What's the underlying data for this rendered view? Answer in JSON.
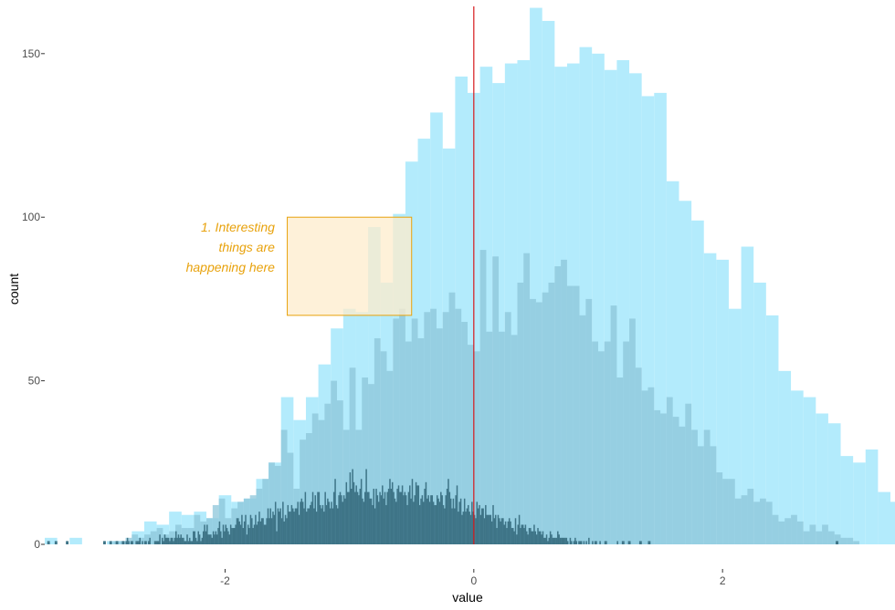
{
  "chart_data": {
    "type": "bar",
    "title": "",
    "xlabel": "value",
    "ylabel": "count",
    "xlim": [
      -3.45,
      3.35
    ],
    "ylim": [
      0,
      165
    ],
    "x_ticks": [
      -2,
      0,
      2
    ],
    "x_tick_labels": [
      "-2",
      "0",
      "2"
    ],
    "y_ticks": [
      0,
      50,
      100,
      150
    ],
    "y_tick_labels": [
      "0",
      "50",
      "100",
      "150"
    ],
    "grid": false,
    "colors": {
      "wide_bins": "#b3ebfc",
      "medium_bins": "#8cc6da",
      "narrow_bins": "#3e7487",
      "vline": "#d7191c",
      "annotation": "#e8a20c",
      "annotation_fill": "#fdeccc"
    },
    "series": [
      {
        "bin_width": 0.1,
        "x_start": -3.45,
        "values": [
          2,
          0,
          2,
          0,
          0,
          1,
          1,
          4,
          7,
          6,
          10,
          9,
          10,
          8,
          15,
          13,
          14,
          20,
          25,
          45,
          38,
          45,
          55,
          66,
          72,
          71,
          97,
          80,
          101,
          117,
          124,
          132,
          121,
          143,
          138,
          146,
          141,
          147,
          148,
          164,
          160,
          146,
          147,
          152,
          150,
          145,
          148,
          144,
          137,
          138,
          111,
          105,
          99,
          89,
          87,
          72,
          91,
          80,
          70,
          53,
          47,
          45,
          40,
          37,
          27,
          25,
          29,
          16,
          13,
          13,
          6,
          6,
          4,
          1,
          1,
          1,
          0,
          0,
          1,
          0,
          0
        ]
      },
      {
        "bin_width": 0.05,
        "x_start": -2.9,
        "values": [
          1,
          1,
          2,
          3,
          2,
          3,
          4,
          5,
          3,
          4,
          6,
          5,
          5,
          9,
          7,
          8,
          12,
          14,
          8,
          11,
          13,
          14,
          15,
          17,
          20,
          25,
          24,
          35,
          28,
          17,
          32,
          34,
          40,
          38,
          43,
          50,
          44,
          35,
          54,
          35,
          51,
          49,
          63,
          59,
          53,
          69,
          72,
          62,
          69,
          63,
          71,
          72,
          66,
          71,
          77,
          72,
          68,
          61,
          59,
          90,
          65,
          88,
          65,
          71,
          64,
          80,
          89,
          75,
          74,
          77,
          80,
          85,
          87,
          79,
          79,
          70,
          75,
          62,
          59,
          62,
          73,
          51,
          62,
          69,
          54,
          47,
          48,
          41,
          40,
          45,
          39,
          36,
          43,
          35,
          30,
          35,
          30,
          22,
          20,
          20,
          14,
          15,
          17,
          13,
          14,
          13,
          9,
          7,
          8,
          9,
          7,
          4,
          6,
          4,
          6,
          4,
          3,
          2,
          2,
          1
        ]
      },
      {
        "bin_width": 0.01,
        "x_start": -3.45,
        "values": [
          0,
          0,
          1,
          1,
          0,
          0,
          0,
          0,
          1,
          1,
          0,
          0,
          0,
          0,
          0,
          0,
          0,
          1,
          1,
          0,
          0,
          0,
          0,
          0,
          0,
          0,
          0,
          0,
          0,
          0,
          0,
          0,
          0,
          0,
          0,
          0,
          0,
          0,
          0,
          0,
          0,
          0,
          0,
          0,
          0,
          0,
          0,
          1,
          1,
          0,
          0,
          0,
          1,
          1,
          0,
          0,
          0,
          1,
          1,
          0,
          0,
          0,
          1,
          1,
          0,
          1,
          2,
          1,
          0,
          1,
          1,
          0,
          0,
          1,
          1,
          1,
          2,
          0,
          1,
          0,
          1,
          1,
          0,
          1,
          2,
          0,
          0,
          0,
          1,
          1,
          1,
          1,
          3,
          0,
          2,
          1,
          3,
          2,
          2,
          2,
          1,
          2,
          2,
          1,
          2,
          4,
          2,
          3,
          2,
          3,
          2,
          2,
          1,
          1,
          3,
          1,
          2,
          1,
          1,
          4,
          4,
          2,
          1,
          4,
          3,
          1,
          2,
          4,
          6,
          4,
          6,
          3,
          3,
          3,
          2,
          4,
          3,
          4,
          3,
          5,
          7,
          4,
          2,
          6,
          4,
          6,
          5,
          4,
          3,
          6,
          5,
          5,
          5,
          6,
          8,
          8,
          7,
          6,
          9,
          5,
          7,
          9,
          3,
          6,
          5,
          9,
          8,
          5,
          6,
          9,
          6,
          7,
          10,
          7,
          8,
          8,
          6,
          6,
          8,
          11,
          8,
          11,
          8,
          10,
          9,
          13,
          4,
          11,
          10,
          11,
          8,
          13,
          7,
          9,
          8,
          12,
          10,
          10,
          12,
          11,
          10,
          11,
          11,
          13,
          9,
          13,
          14,
          13,
          11,
          16,
          10,
          11,
          11,
          12,
          13,
          16,
          11,
          15,
          10,
          16,
          16,
          12,
          11,
          12,
          10,
          16,
          12,
          14,
          13,
          11,
          13,
          11,
          16,
          20,
          12,
          11,
          15,
          16,
          15,
          13,
          15,
          14,
          19,
          16,
          16,
          22,
          17,
          23,
          19,
          16,
          18,
          16,
          15,
          17,
          20,
          14,
          13,
          16,
          23,
          16,
          16,
          14,
          14,
          12,
          17,
          11,
          17,
          15,
          13,
          16,
          15,
          18,
          14,
          16,
          12,
          16,
          17,
          20,
          17,
          19,
          16,
          14,
          13,
          17,
          18,
          16,
          16,
          18,
          15,
          16,
          15,
          12,
          16,
          18,
          14,
          20,
          13,
          15,
          19,
          18,
          18,
          12,
          14,
          15,
          13,
          17,
          19,
          14,
          15,
          13,
          15,
          15,
          13,
          12,
          12,
          15,
          14,
          13,
          16,
          15,
          12,
          11,
          15,
          17,
          20,
          16,
          14,
          11,
          14,
          11,
          15,
          18,
          10,
          13,
          14,
          9,
          10,
          14,
          10,
          11,
          12,
          10,
          9,
          13,
          10,
          9,
          8,
          13,
          11,
          12,
          9,
          11,
          11,
          8,
          12,
          9,
          9,
          9,
          9,
          7,
          12,
          8,
          9,
          5,
          9,
          8,
          7,
          8,
          8,
          6,
          7,
          5,
          7,
          8,
          7,
          5,
          5,
          4,
          8,
          3,
          6,
          9,
          5,
          6,
          6,
          5,
          6,
          4,
          3,
          5,
          5,
          4,
          4,
          6,
          4,
          3,
          5,
          4,
          4,
          3,
          4,
          2,
          2,
          3,
          1,
          2,
          4,
          3,
          2,
          2,
          2,
          2,
          4,
          3,
          2,
          2,
          2,
          2,
          2,
          2,
          1,
          0,
          2,
          1,
          0,
          1,
          2,
          1,
          0,
          1,
          1,
          1,
          0,
          1,
          0,
          1,
          0,
          2,
          0,
          0,
          1,
          0,
          1,
          1,
          0,
          0,
          1,
          0,
          0,
          0,
          1,
          1,
          0,
          0,
          0,
          0,
          0,
          0,
          0,
          0,
          1,
          0,
          0,
          0,
          1,
          1,
          0,
          0,
          0,
          1,
          1,
          0,
          0,
          0,
          0,
          0,
          0,
          0,
          1,
          1,
          0,
          0,
          0,
          0,
          0,
          1,
          1,
          0,
          0,
          0,
          0,
          0,
          0,
          0,
          0,
          0,
          0,
          0,
          0,
          0,
          0,
          0,
          0,
          0,
          0,
          0,
          0,
          0,
          0,
          0,
          0,
          0,
          0,
          0,
          0,
          0,
          0,
          0,
          0,
          0,
          0,
          0,
          0,
          0,
          0,
          0,
          0,
          0,
          0,
          0,
          0,
          0,
          0,
          0,
          0,
          0,
          0,
          0,
          0,
          0,
          0,
          0,
          0,
          0,
          0,
          0,
          0,
          0,
          0,
          0,
          0,
          0,
          0,
          0,
          0,
          0,
          0,
          0,
          0,
          0,
          0,
          0,
          0,
          0,
          0,
          0,
          0,
          0,
          0,
          0,
          0,
          0,
          0,
          0,
          0,
          0,
          0,
          0,
          0,
          0,
          0,
          0,
          0,
          0,
          0,
          0,
          0,
          0,
          0,
          0,
          0,
          0,
          0,
          0,
          0,
          0,
          0,
          0,
          0,
          0,
          0,
          0,
          0,
          0,
          0,
          0,
          0,
          0,
          0,
          0,
          0,
          0,
          0,
          0,
          0,
          0,
          0,
          0,
          0,
          0,
          0,
          0,
          0,
          0,
          0,
          0,
          0,
          0,
          0,
          0,
          0,
          0,
          0,
          0,
          0,
          0,
          1,
          1,
          0,
          0,
          0,
          0,
          0,
          0
        ]
      }
    ],
    "vline": {
      "x": 0
    },
    "annotation_rect": {
      "x0": -1.5,
      "x1": -0.5,
      "y0": 70,
      "y1": 100
    },
    "annotation": {
      "lines": [
        "1. Interesting",
        "things are",
        "happening here"
      ],
      "anchor_x": -1.6,
      "anchor_y": 97
    }
  }
}
